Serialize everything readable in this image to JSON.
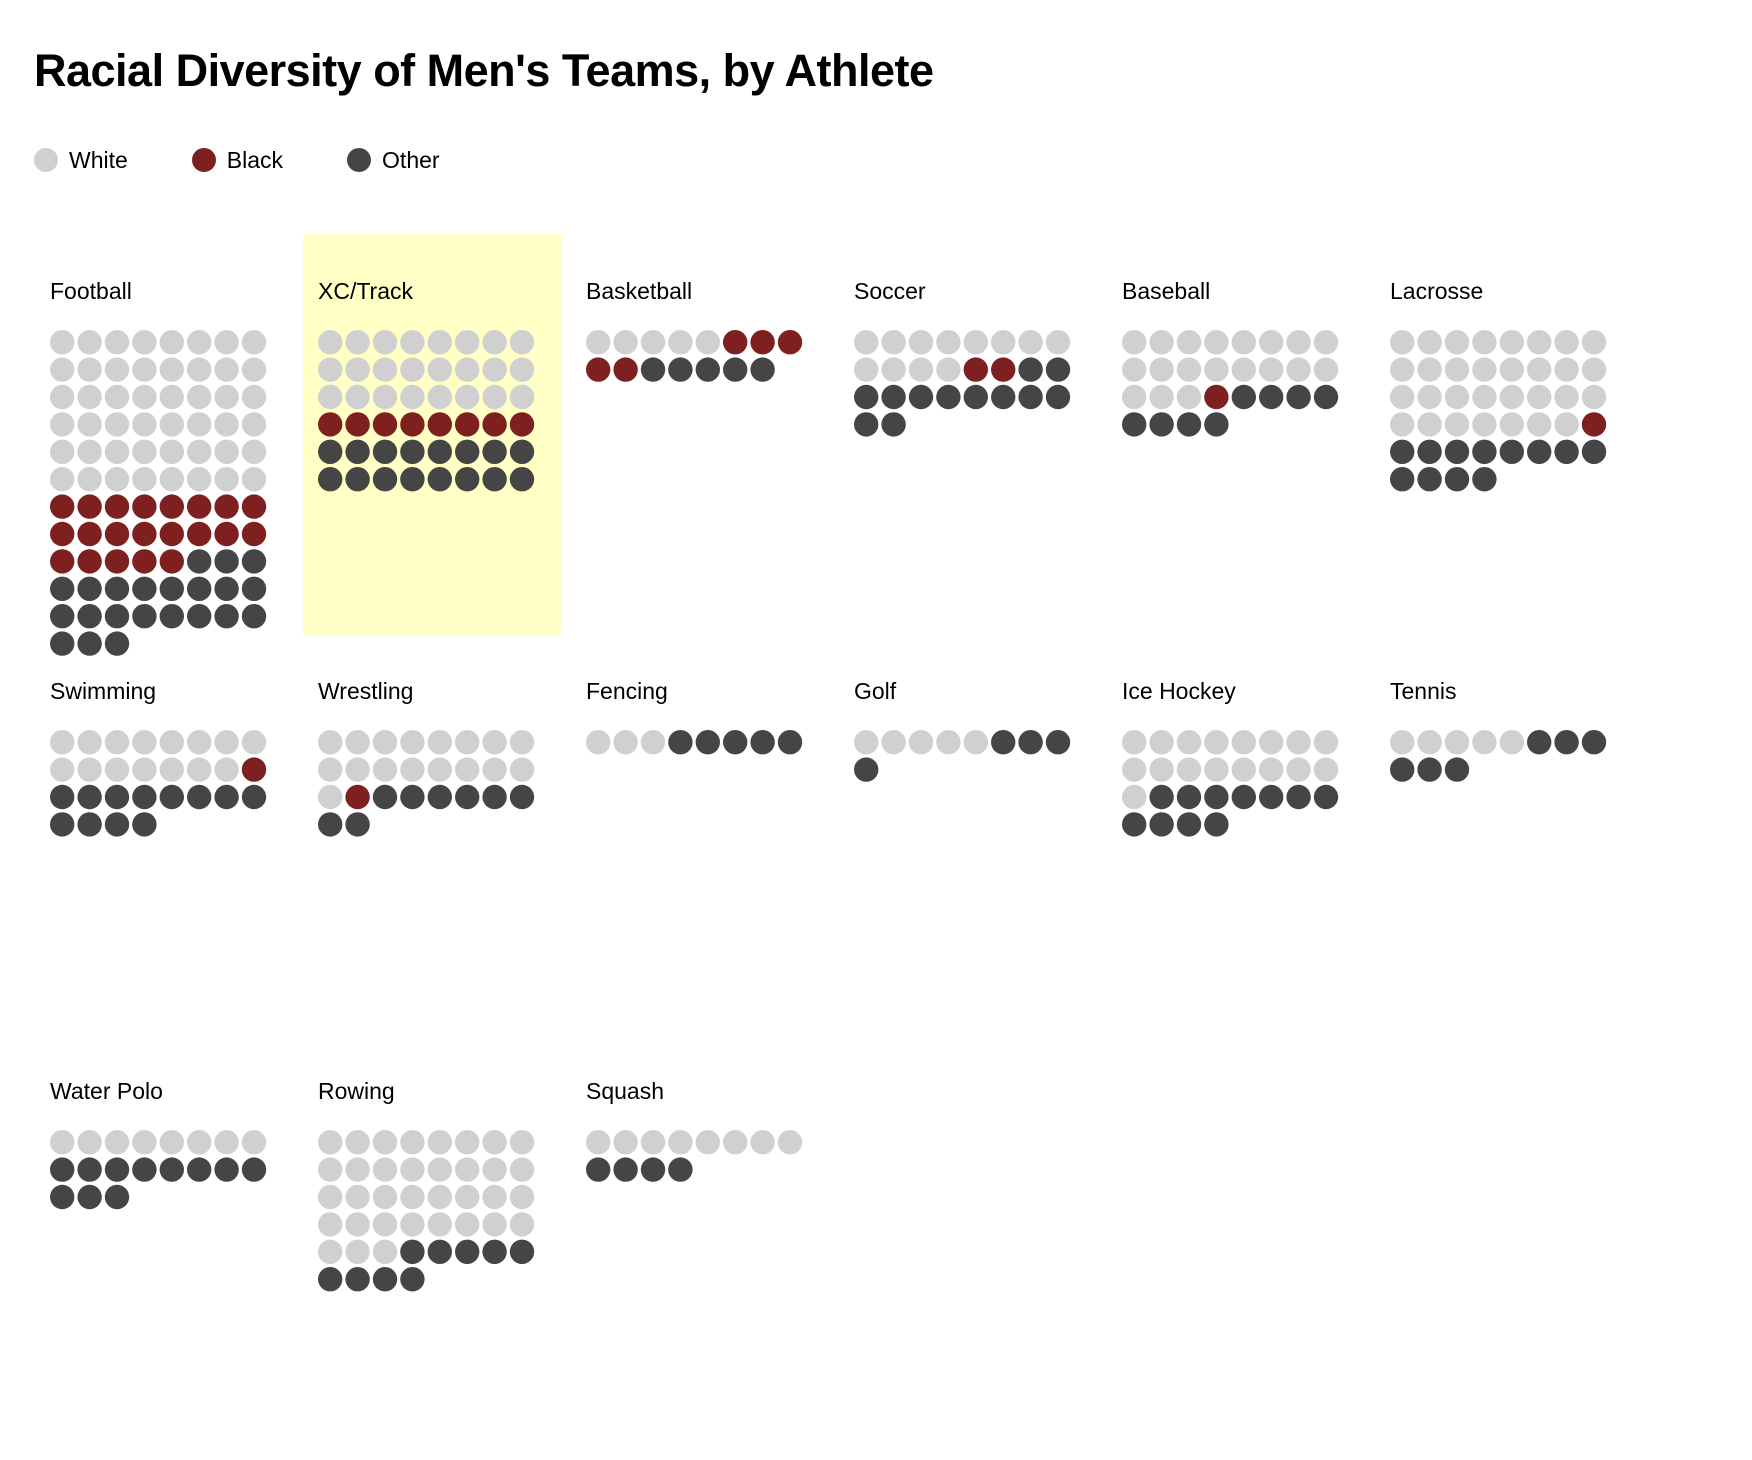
{
  "chart_data": {
    "type": "unit-chart",
    "title": "Racial Diversity of Men's Teams, by Athlete",
    "colors": {
      "White": "#d0d0d0",
      "Black": "#7e1f20",
      "Other": "#454545"
    },
    "legend": [
      {
        "label": "White",
        "color": "#d0d0d0"
      },
      {
        "label": "Black",
        "color": "#7e1f20"
      },
      {
        "label": "Other",
        "color": "#454545"
      }
    ],
    "dots_per_row": 8,
    "highlighted": "XC/Track",
    "teams": [
      {
        "name": "Football",
        "white": 48,
        "black": 21,
        "other": 22
      },
      {
        "name": "XC/Track",
        "white": 24,
        "black": 8,
        "other": 16
      },
      {
        "name": "Basketball",
        "white": 5,
        "black": 5,
        "other": 5
      },
      {
        "name": "Soccer",
        "white": 12,
        "black": 2,
        "other": 12
      },
      {
        "name": "Baseball",
        "white": 19,
        "black": 1,
        "other": 8
      },
      {
        "name": "Lacrosse",
        "white": 31,
        "black": 1,
        "other": 12
      },
      {
        "name": "Swimming",
        "white": 15,
        "black": 1,
        "other": 12
      },
      {
        "name": "Wrestling",
        "white": 17,
        "black": 1,
        "other": 8
      },
      {
        "name": "Fencing",
        "white": 3,
        "black": 0,
        "other": 5
      },
      {
        "name": "Golf",
        "white": 5,
        "black": 0,
        "other": 4
      },
      {
        "name": "Ice Hockey",
        "white": 17,
        "black": 0,
        "other": 11
      },
      {
        "name": "Tennis",
        "white": 5,
        "black": 0,
        "other": 6
      },
      {
        "name": "Water Polo",
        "white": 8,
        "black": 0,
        "other": 11
      },
      {
        "name": "Rowing",
        "white": 35,
        "black": 0,
        "other": 9
      },
      {
        "name": "Squash",
        "white": 8,
        "black": 0,
        "other": 4
      }
    ]
  }
}
